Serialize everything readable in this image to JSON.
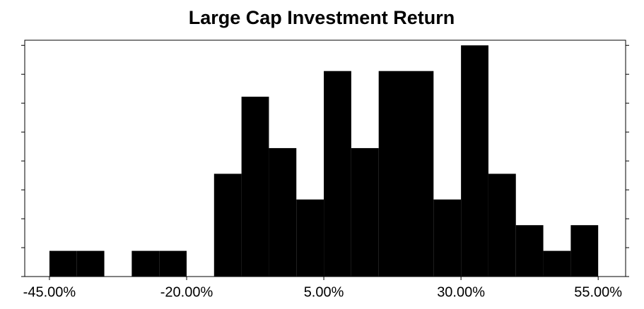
{
  "chart_data": {
    "type": "histogram",
    "title": "Large Cap Investment Return",
    "bins": [
      -45,
      -40,
      -35,
      -30,
      -25,
      -20,
      -15,
      -10,
      -5,
      0,
      5,
      10,
      15,
      20,
      25,
      30,
      35,
      40,
      45,
      50,
      55
    ],
    "values": [
      1,
      1,
      0,
      1,
      1,
      0,
      4,
      7,
      5,
      3,
      8,
      5,
      8,
      8,
      3,
      9,
      4,
      2,
      1,
      2
    ],
    "color": "#000000",
    "xlim": [
      -49.5,
      60
    ],
    "xticks": [
      {
        "value": -45,
        "label": "-45.00%"
      },
      {
        "value": -20,
        "label": "-20.00%"
      },
      {
        "value": 5,
        "label": "5.00%"
      },
      {
        "value": 30,
        "label": "30.00%"
      },
      {
        "value": 55,
        "label": "55.00%"
      }
    ],
    "ylim": [
      0,
      9.2
    ],
    "yticks": [
      0,
      1.125,
      2.25,
      3.375,
      4.5,
      5.625,
      6.75,
      7.875,
      9
    ]
  }
}
